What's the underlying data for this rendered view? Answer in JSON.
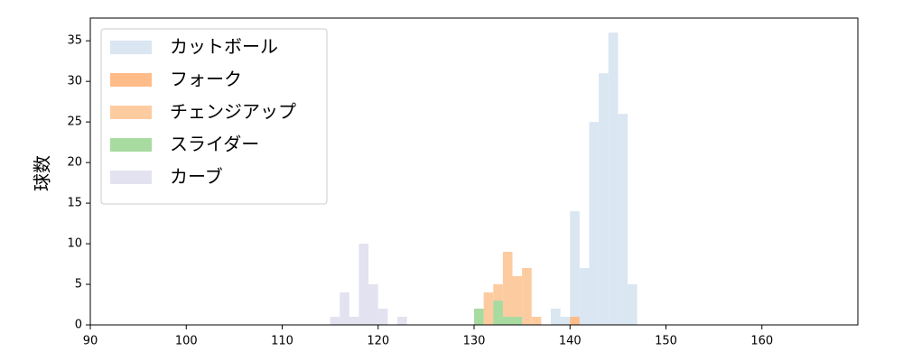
{
  "chart_data": {
    "type": "histogram",
    "y_label": "球数",
    "xlim": [
      90,
      170
    ],
    "ylim": [
      0,
      37.8
    ],
    "xticks": [
      90,
      100,
      110,
      120,
      130,
      140,
      150,
      160
    ],
    "yticks": [
      0,
      5,
      10,
      15,
      20,
      25,
      30,
      35
    ],
    "legend": "upper left",
    "series": [
      {
        "name": "カットボール",
        "color": "#dae6f2",
        "bins": [
          138,
          139,
          140,
          141,
          142,
          143,
          144,
          145,
          146,
          147
        ],
        "values": [
          2,
          1,
          14,
          7,
          25,
          31,
          36,
          26,
          5
        ]
      },
      {
        "name": "フォーク",
        "color": "#ffbb88",
        "bins": [
          140,
          141
        ],
        "values": [
          1
        ]
      },
      {
        "name": "チェンジアップ",
        "color": "#fdcba0",
        "bins": [
          131,
          132,
          133,
          134,
          135,
          136,
          137
        ],
        "values": [
          4,
          5,
          9,
          6,
          7,
          1
        ]
      },
      {
        "name": "スライダー",
        "color": "#a8dba0",
        "bins": [
          130,
          131,
          132,
          133,
          134,
          135
        ],
        "values": [
          2,
          0,
          3,
          1,
          1
        ]
      },
      {
        "name": "カーブ",
        "color": "#e2e2f0",
        "bins": [
          115,
          116,
          117,
          118,
          119,
          120,
          121,
          122,
          123
        ],
        "values": [
          1,
          4,
          1,
          10,
          5,
          2,
          0,
          1
        ]
      }
    ]
  }
}
